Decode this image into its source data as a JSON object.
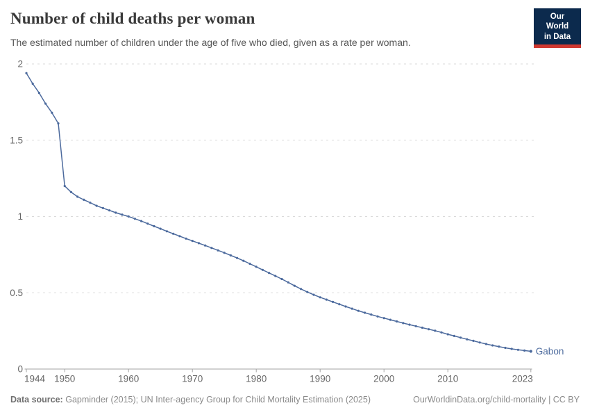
{
  "header": {
    "title": "Number of child deaths per woman",
    "subtitle": "The estimated number of children under the age of five who died, given as a rate per woman.",
    "logo": {
      "line1": "Our World",
      "line2": "in Data",
      "bg_color": "#0c2a4d",
      "accent_color": "#d03830"
    }
  },
  "chart_data": {
    "type": "line",
    "title": "Number of child deaths per woman",
    "xlabel": "",
    "ylabel": "",
    "xlim": [
      1944,
      2023
    ],
    "ylim": [
      0,
      2
    ],
    "grid": "horizontal-dashed",
    "legend_position": "end-of-line-label",
    "x_ticks": [
      1944,
      1950,
      1960,
      1970,
      1980,
      1990,
      2000,
      2010,
      2023
    ],
    "x_tick_labels": [
      "1944",
      "1950",
      "1960",
      "1970",
      "1980",
      "1990",
      "2000",
      "2010",
      "2023"
    ],
    "y_ticks": [
      0,
      0.5,
      1,
      1.5,
      2
    ],
    "y_tick_labels": [
      "0",
      "0.5",
      "1",
      "1.5",
      "2"
    ],
    "series": [
      {
        "name": "Gabon",
        "color": "#4c6a9d",
        "x": [
          1944,
          1945,
          1946,
          1947,
          1948,
          1949,
          1950,
          1951,
          1952,
          1953,
          1954,
          1955,
          1956,
          1957,
          1958,
          1959,
          1960,
          1961,
          1962,
          1963,
          1964,
          1965,
          1966,
          1967,
          1968,
          1969,
          1970,
          1971,
          1972,
          1973,
          1974,
          1975,
          1976,
          1977,
          1978,
          1979,
          1980,
          1981,
          1982,
          1983,
          1984,
          1985,
          1986,
          1987,
          1988,
          1989,
          1990,
          1991,
          1992,
          1993,
          1994,
          1995,
          1996,
          1997,
          1998,
          1999,
          2000,
          2001,
          2002,
          2003,
          2004,
          2005,
          2006,
          2007,
          2008,
          2009,
          2010,
          2011,
          2012,
          2013,
          2014,
          2015,
          2016,
          2017,
          2018,
          2019,
          2020,
          2021,
          2022,
          2023
        ],
        "values": [
          1.94,
          1.87,
          1.81,
          1.74,
          1.68,
          1.61,
          1.2,
          1.16,
          1.13,
          1.11,
          1.09,
          1.07,
          1.055,
          1.04,
          1.025,
          1.012,
          1.0,
          0.985,
          0.97,
          0.953,
          0.936,
          0.92,
          0.903,
          0.887,
          0.871,
          0.855,
          0.84,
          0.825,
          0.81,
          0.794,
          0.778,
          0.762,
          0.745,
          0.728,
          0.71,
          0.69,
          0.67,
          0.65,
          0.63,
          0.61,
          0.59,
          0.568,
          0.546,
          0.525,
          0.505,
          0.487,
          0.47,
          0.455,
          0.44,
          0.425,
          0.41,
          0.396,
          0.382,
          0.369,
          0.357,
          0.345,
          0.334,
          0.323,
          0.312,
          0.301,
          0.291,
          0.281,
          0.271,
          0.261,
          0.251,
          0.24,
          0.228,
          0.217,
          0.206,
          0.195,
          0.185,
          0.174,
          0.164,
          0.155,
          0.147,
          0.139,
          0.132,
          0.126,
          0.121,
          0.116
        ]
      }
    ],
    "end_label": "Gabon",
    "colors": {
      "gridline": "#dadada",
      "axis": "#a3a3a3",
      "tick_text": "#666666"
    }
  },
  "footer": {
    "source_label": "Data source:",
    "source_text": "Gapminder (2015); UN Inter-agency Group for Child Mortality Estimation (2025)",
    "credit": "OurWorldinData.org/child-mortality | CC BY"
  }
}
